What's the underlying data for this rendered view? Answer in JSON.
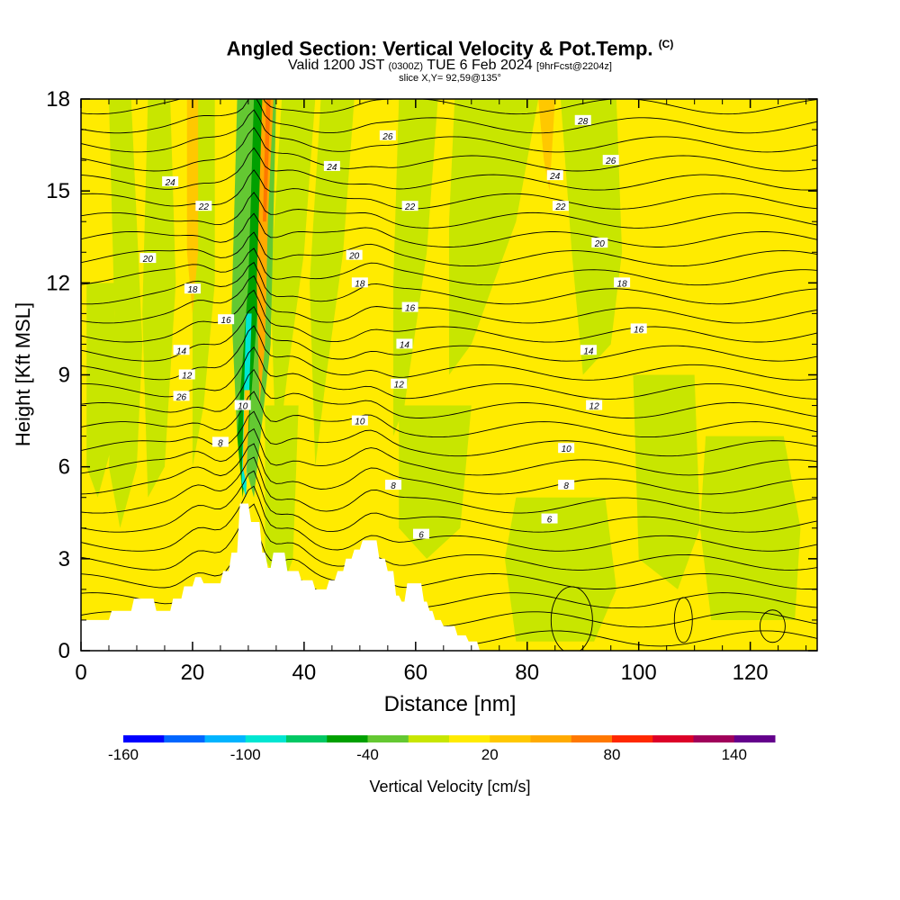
{
  "header": {
    "title_main": "Angled Section: Vertical Velocity & Pot.Temp.",
    "title_unit": "(C)",
    "valid_prefix": "Valid 1200 JST",
    "valid_utc": "(0300Z)",
    "valid_date": "TUE 6 Feb 2024",
    "forecast": "[9hrFcst@2204z]",
    "slice": "slice X,Y= 92,59@135°"
  },
  "chart_data": {
    "type": "heatmap",
    "xlabel": "Distance [nm]",
    "ylabel": "Height [Kft MSL]",
    "xlim": [
      0,
      132
    ],
    "ylim": [
      0,
      18
    ],
    "x_ticks": [
      "0",
      "20",
      "40",
      "60",
      "80",
      "100",
      "120"
    ],
    "y_ticks": [
      "0",
      "3",
      "6",
      "9",
      "12",
      "15",
      "18"
    ],
    "colorbar": {
      "label": "Vertical Velocity [cm/s]",
      "tick_labels": [
        "-160",
        "-100",
        "-40",
        "20",
        "80",
        "140"
      ],
      "tick_values": [
        -160,
        -100,
        -40,
        20,
        80,
        140
      ],
      "bins": [
        -160,
        -140,
        -120,
        -100,
        -80,
        -60,
        -40,
        -20,
        0,
        20,
        40,
        60,
        80,
        100,
        120,
        140,
        160
      ],
      "colors": [
        "#0000ff",
        "#0066ff",
        "#00b4ff",
        "#00e6d2",
        "#00c864",
        "#00a000",
        "#64c832",
        "#c8e600",
        "#ffeb00",
        "#ffc800",
        "#ffaa00",
        "#ff7800",
        "#ff2800",
        "#dc0028",
        "#a0005a",
        "#64008c"
      ]
    },
    "background_value_color": "#ffeb00",
    "contour_series_name": "Pot.Temp.",
    "theta_contour_labels": [
      {
        "x": 18,
        "y": 8.3,
        "text": "26"
      },
      {
        "x": 55,
        "y": 16.8,
        "text": "26"
      },
      {
        "x": 90,
        "y": 17.3,
        "text": "28"
      },
      {
        "x": 95,
        "y": 16.0,
        "text": "26"
      },
      {
        "x": 16,
        "y": 15.3,
        "text": "24"
      },
      {
        "x": 45,
        "y": 15.8,
        "text": "24"
      },
      {
        "x": 85,
        "y": 15.5,
        "text": "24"
      },
      {
        "x": 22,
        "y": 14.5,
        "text": "22"
      },
      {
        "x": 59,
        "y": 14.5,
        "text": "22"
      },
      {
        "x": 86,
        "y": 14.5,
        "text": "22"
      },
      {
        "x": 12,
        "y": 12.8,
        "text": "20"
      },
      {
        "x": 49,
        "y": 12.9,
        "text": "20"
      },
      {
        "x": 93,
        "y": 13.3,
        "text": "20"
      },
      {
        "x": 20,
        "y": 11.8,
        "text": "18"
      },
      {
        "x": 50,
        "y": 12.0,
        "text": "18"
      },
      {
        "x": 97,
        "y": 12.0,
        "text": "18"
      },
      {
        "x": 26,
        "y": 10.8,
        "text": "16"
      },
      {
        "x": 59,
        "y": 11.2,
        "text": "16"
      },
      {
        "x": 100,
        "y": 10.5,
        "text": "16"
      },
      {
        "x": 18,
        "y": 9.8,
        "text": "14"
      },
      {
        "x": 58,
        "y": 10.0,
        "text": "14"
      },
      {
        "x": 91,
        "y": 9.8,
        "text": "14"
      },
      {
        "x": 19,
        "y": 9.0,
        "text": "12"
      },
      {
        "x": 57,
        "y": 8.7,
        "text": "12"
      },
      {
        "x": 92,
        "y": 8.0,
        "text": "12"
      },
      {
        "x": 29,
        "y": 8.0,
        "text": "10"
      },
      {
        "x": 50,
        "y": 7.5,
        "text": "10"
      },
      {
        "x": 87,
        "y": 6.6,
        "text": "10"
      },
      {
        "x": 25,
        "y": 6.8,
        "text": "8"
      },
      {
        "x": 56,
        "y": 5.4,
        "text": "8"
      },
      {
        "x": 87,
        "y": 5.4,
        "text": "8"
      },
      {
        "x": 61,
        "y": 3.8,
        "text": "6"
      },
      {
        "x": 84,
        "y": 4.3,
        "text": "6"
      }
    ],
    "terrain_profile": {
      "x": [
        0,
        5,
        5.5,
        9,
        9.5,
        13,
        13.5,
        16,
        16.5,
        18,
        18.5,
        20,
        20.5,
        21.5,
        22,
        25,
        25.5,
        26.5,
        27,
        28,
        28.5,
        30,
        30.5,
        32,
        32.5,
        33,
        33.5,
        34,
        34.5,
        36.5,
        37,
        39,
        39.5,
        41.5,
        42,
        44,
        44.5,
        45.5,
        46,
        47,
        47.5,
        48.5,
        49,
        50,
        50.5,
        53,
        53.5,
        54.5,
        55,
        56,
        56.5,
        57,
        57.5,
        58,
        58.5,
        61,
        61.5,
        62,
        62.5,
        63,
        63.5,
        64.5,
        65,
        67,
        67.5,
        69,
        69.5,
        71,
        71.5,
        132
      ],
      "elev": [
        1.0,
        1.0,
        1.3,
        1.3,
        1.7,
        1.7,
        1.3,
        1.3,
        1.7,
        1.7,
        2.1,
        2.1,
        2.4,
        2.4,
        2.2,
        2.2,
        2.6,
        2.6,
        3.2,
        3.2,
        4.8,
        4.8,
        4.2,
        4.2,
        3.2,
        3.2,
        2.7,
        2.7,
        3.2,
        3.2,
        2.6,
        2.6,
        2.3,
        2.3,
        2.0,
        2.0,
        2.3,
        2.3,
        2.6,
        2.6,
        3.0,
        3.0,
        3.3,
        3.3,
        3.6,
        3.6,
        3.0,
        3.0,
        2.6,
        2.6,
        1.8,
        1.8,
        1.6,
        1.6,
        2.2,
        2.2,
        1.6,
        1.6,
        1.3,
        1.3,
        1.0,
        1.0,
        0.8,
        0.8,
        0.5,
        0.5,
        0.3,
        0.3,
        0.0,
        0.0
      ]
    }
  }
}
